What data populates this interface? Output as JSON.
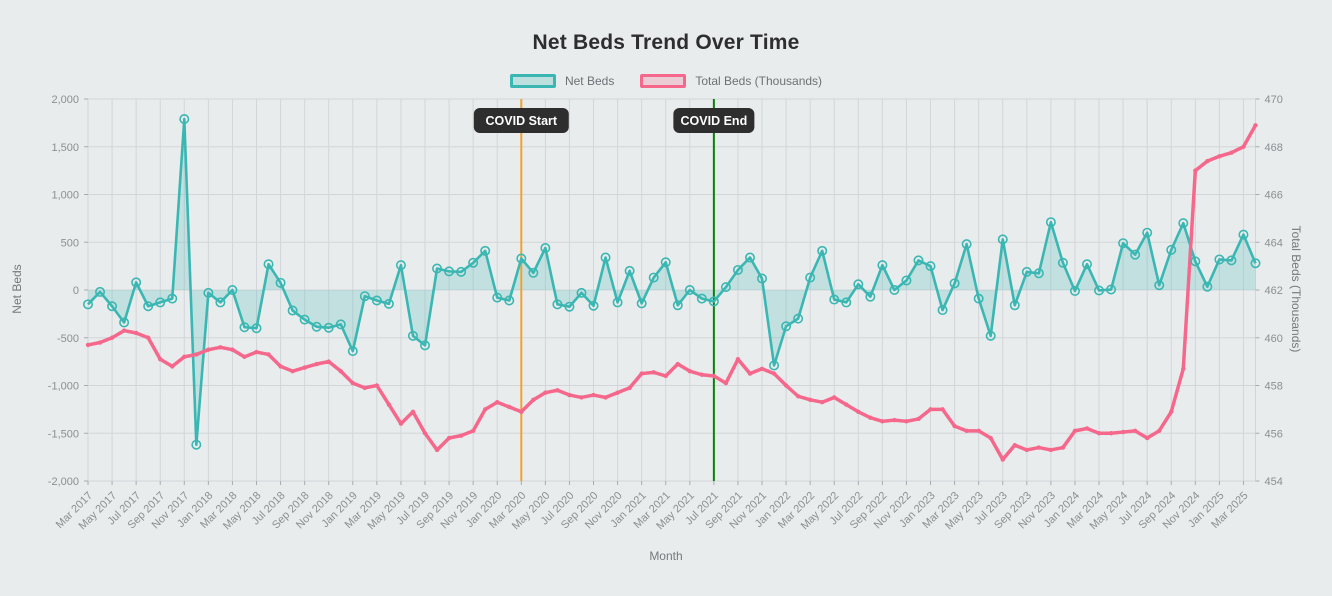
{
  "title": "Net Beds Trend Over Time",
  "legend": {
    "net_beds": {
      "label": "Net Beds"
    },
    "total_beds": {
      "label": "Total Beds (Thousands)"
    }
  },
  "axes": {
    "left_title": "Net Beds",
    "right_title": "Total Beds (Thousands)",
    "x_title": "Month"
  },
  "annotations": [
    {
      "label": "COVID Start",
      "x": "Mar 2020",
      "color": "#f2a12e"
    },
    {
      "label": "COVID End",
      "x": "Jul 2021",
      "color": "#0b800b"
    }
  ],
  "colors": {
    "background": "#e9eced",
    "grid": "#d2d6da",
    "tick_text": "#8b8f93",
    "annotation_box": "#2e2e2e",
    "annotation_text": "#ffffff",
    "net_beds_line": "#3ab7b2",
    "net_beds_fill": "rgba(58,183,178,0.22)",
    "total_beds_line": "#f5688c"
  },
  "chart_data": {
    "type": "line",
    "title": "Net Beds Trend Over Time",
    "xlabel": "Month",
    "ylabel_left": "Net Beds",
    "ylabel_right": "Total Beds (Thousands)",
    "ylim_left": [
      -2000,
      2000
    ],
    "ytick_step_left": 500,
    "ylim_right": [
      454,
      470
    ],
    "ytick_step_right": 2,
    "grid": true,
    "legend_position": "top-center",
    "x_tick_every": 2,
    "x": [
      "Mar 2017",
      "Apr 2017",
      "May 2017",
      "Jun 2017",
      "Jul 2017",
      "Aug 2017",
      "Sep 2017",
      "Oct 2017",
      "Nov 2017",
      "Dec 2017",
      "Jan 2018",
      "Feb 2018",
      "Mar 2018",
      "Apr 2018",
      "May 2018",
      "Jun 2018",
      "Jul 2018",
      "Aug 2018",
      "Sep 2018",
      "Oct 2018",
      "Nov 2018",
      "Dec 2018",
      "Jan 2019",
      "Feb 2019",
      "Mar 2019",
      "Apr 2019",
      "May 2019",
      "Jun 2019",
      "Jul 2019",
      "Aug 2019",
      "Sep 2019",
      "Oct 2019",
      "Nov 2019",
      "Dec 2019",
      "Jan 2020",
      "Feb 2020",
      "Mar 2020",
      "Apr 2020",
      "May 2020",
      "Jun 2020",
      "Jul 2020",
      "Aug 2020",
      "Sep 2020",
      "Oct 2020",
      "Nov 2020",
      "Dec 2020",
      "Jan 2021",
      "Feb 2021",
      "Mar 2021",
      "Apr 2021",
      "May 2021",
      "Jun 2021",
      "Jul 2021",
      "Aug 2021",
      "Sep 2021",
      "Oct 2021",
      "Nov 2021",
      "Dec 2021",
      "Jan 2022",
      "Feb 2022",
      "Mar 2022",
      "Apr 2022",
      "May 2022",
      "Jun 2022",
      "Jul 2022",
      "Aug 2022",
      "Sep 2022",
      "Oct 2022",
      "Nov 2022",
      "Dec 2022",
      "Jan 2023",
      "Feb 2023",
      "Mar 2023",
      "Apr 2023",
      "May 2023",
      "Jun 2023",
      "Jul 2023",
      "Aug 2023",
      "Sep 2023",
      "Oct 2023",
      "Nov 2023",
      "Dec 2023",
      "Jan 2024",
      "Feb 2024",
      "Mar 2024",
      "Apr 2024",
      "May 2024",
      "Jun 2024",
      "Jul 2024",
      "Aug 2024",
      "Sep 2024",
      "Oct 2024",
      "Nov 2024",
      "Dec 2024",
      "Jan 2025",
      "Feb 2025",
      "Mar 2025",
      "Apr 2025"
    ],
    "series": [
      {
        "name": "Net Beds",
        "axis": "left",
        "color": "#3ab7b2",
        "fill_to_zero": true,
        "values": [
          -150,
          -20,
          -170,
          -340,
          80,
          -170,
          -130,
          -90,
          1790,
          -1620,
          -30,
          -130,
          0,
          -390,
          -400,
          270,
          75,
          -215,
          -310,
          -385,
          -395,
          -360,
          -640,
          -65,
          -110,
          -145,
          260,
          -480,
          -580,
          225,
          195,
          190,
          285,
          410,
          -80,
          -110,
          330,
          180,
          440,
          -150,
          -175,
          -30,
          -165,
          340,
          -130,
          200,
          -140,
          130,
          290,
          -160,
          0,
          -90,
          -120,
          30,
          210,
          340,
          120,
          -790,
          -380,
          -300,
          130,
          410,
          -100,
          -130,
          60,
          -70,
          260,
          0,
          100,
          310,
          250,
          -210,
          70,
          480,
          -90,
          -480,
          530,
          -160,
          190,
          175,
          710,
          285,
          -10,
          270,
          -5,
          5,
          490,
          370,
          600,
          50,
          420,
          700,
          300,
          35,
          320,
          310,
          580,
          280
        ]
      },
      {
        "name": "Total Beds (Thousands)",
        "axis": "right",
        "color": "#f5688c",
        "fill_to_zero": false,
        "values": [
          459.7,
          459.8,
          460.0,
          460.3,
          460.2,
          460.0,
          459.1,
          458.8,
          459.2,
          459.3,
          459.5,
          459.6,
          459.5,
          459.2,
          459.4,
          459.3,
          458.8,
          458.6,
          458.75,
          458.9,
          459.0,
          458.6,
          458.1,
          457.9,
          458.0,
          457.2,
          456.4,
          456.9,
          456.0,
          455.3,
          455.8,
          455.9,
          456.1,
          457.0,
          457.3,
          457.1,
          456.9,
          457.4,
          457.7,
          457.8,
          457.6,
          457.5,
          457.6,
          457.5,
          457.7,
          457.9,
          458.5,
          458.55,
          458.4,
          458.9,
          458.6,
          458.45,
          458.4,
          458.1,
          459.1,
          458.5,
          458.7,
          458.5,
          458.0,
          457.55,
          457.4,
          457.3,
          457.5,
          457.2,
          456.9,
          456.65,
          456.5,
          456.55,
          456.5,
          456.6,
          457.0,
          457.0,
          456.3,
          456.1,
          456.1,
          455.8,
          454.9,
          455.5,
          455.3,
          455.4,
          455.3,
          455.4,
          456.1,
          456.2,
          456.0,
          456.0,
          456.05,
          456.1,
          455.8,
          456.1,
          456.9,
          458.7,
          467.0,
          467.4,
          467.6,
          467.75,
          468.0,
          468.9
        ]
      }
    ]
  }
}
